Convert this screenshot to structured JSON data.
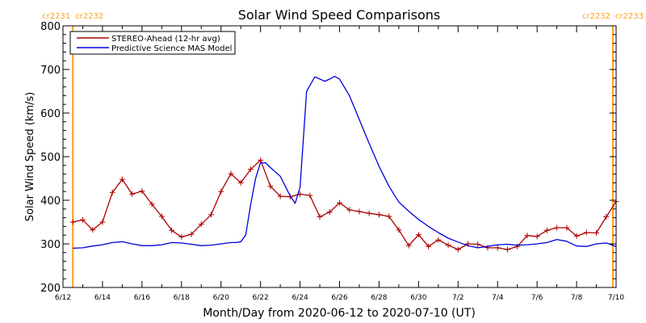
{
  "chart_data": {
    "type": "line",
    "title": "Solar Wind Speed Comparisons",
    "xlabel": "Month/Day from 2020-06-12 to 2020-07-10 (UT)",
    "ylabel": "Solar Wind Speed (km/s)",
    "xlim": [
      "2020-06-12",
      "2020-07-10"
    ],
    "ylim": [
      200,
      800
    ],
    "x_ticks": [
      {
        "date": "2020-06-12",
        "label": "6/12"
      },
      {
        "date": "2020-06-14",
        "label": "6/14"
      },
      {
        "date": "2020-06-16",
        "label": "6/16"
      },
      {
        "date": "2020-06-18",
        "label": "6/18"
      },
      {
        "date": "2020-06-20",
        "label": "6/20"
      },
      {
        "date": "2020-06-22",
        "label": "6/22"
      },
      {
        "date": "2020-06-24",
        "label": "6/24"
      },
      {
        "date": "2020-06-26",
        "label": "6/26"
      },
      {
        "date": "2020-06-28",
        "label": "6/28"
      },
      {
        "date": "2020-06-30",
        "label": "6/30"
      },
      {
        "date": "2020-07-02",
        "label": "7/2"
      },
      {
        "date": "2020-07-04",
        "label": "7/4"
      },
      {
        "date": "2020-07-06",
        "label": "7/6"
      },
      {
        "date": "2020-07-08",
        "label": "7/8"
      },
      {
        "date": "2020-07-10",
        "label": "7/10"
      }
    ],
    "y_ticks": [
      200,
      300,
      400,
      500,
      600,
      700,
      800
    ],
    "legend_position": "top-left",
    "grid": false,
    "markers": [
      {
        "date": "2020-06-12 12:00",
        "left_label": "cr2231",
        "right_label": "cr2232",
        "color": "#ffa020"
      },
      {
        "date": "2020-07-09 20:00",
        "left_label": "cr2232",
        "right_label": "cr2233",
        "color": "#ffa020"
      }
    ],
    "series": [
      {
        "name": "STEREO-Ahead (12-hr avg)",
        "color": "#aa0000",
        "marker": "plus",
        "x": [
          "2020-06-12 12:00",
          "2020-06-13 00:00",
          "2020-06-13 12:00",
          "2020-06-14 00:00",
          "2020-06-14 12:00",
          "2020-06-15 00:00",
          "2020-06-15 12:00",
          "2020-06-16 00:00",
          "2020-06-16 12:00",
          "2020-06-17 00:00",
          "2020-06-17 12:00",
          "2020-06-18 00:00",
          "2020-06-18 12:00",
          "2020-06-19 00:00",
          "2020-06-19 12:00",
          "2020-06-20 00:00",
          "2020-06-20 12:00",
          "2020-06-21 00:00",
          "2020-06-21 12:00",
          "2020-06-22 00:00",
          "2020-06-22 12:00",
          "2020-06-23 00:00",
          "2020-06-23 12:00",
          "2020-06-24 00:00",
          "2020-06-24 12:00",
          "2020-06-25 00:00",
          "2020-06-25 12:00",
          "2020-06-26 00:00",
          "2020-06-26 12:00",
          "2020-06-27 00:00",
          "2020-06-27 12:00",
          "2020-06-28 00:00",
          "2020-06-28 12:00",
          "2020-06-29 00:00",
          "2020-06-29 12:00",
          "2020-06-30 00:00",
          "2020-06-30 12:00",
          "2020-07-01 00:00",
          "2020-07-01 12:00",
          "2020-07-02 00:00",
          "2020-07-02 12:00",
          "2020-07-03 00:00",
          "2020-07-03 12:00",
          "2020-07-04 00:00",
          "2020-07-04 12:00",
          "2020-07-05 00:00",
          "2020-07-05 12:00",
          "2020-07-06 00:00",
          "2020-07-06 12:00",
          "2020-07-07 00:00",
          "2020-07-07 12:00",
          "2020-07-08 00:00",
          "2020-07-08 12:00",
          "2020-07-09 00:00",
          "2020-07-09 12:00",
          "2020-07-10 00:00"
        ],
        "values": [
          350,
          355,
          332,
          350,
          418,
          448,
          414,
          421,
          391,
          363,
          331,
          316,
          322,
          345,
          367,
          420,
          461,
          440,
          471,
          492,
          432,
          409,
          408,
          414,
          411,
          362,
          373,
          394,
          378,
          374,
          370,
          367,
          363,
          332,
          296,
          321,
          294,
          309,
          297,
          287,
          300,
          299,
          291,
          291,
          287,
          294,
          319,
          317,
          331,
          337,
          337,
          318,
          326,
          325,
          362,
          397
        ]
      },
      {
        "name": "Predictive Science MAS Model",
        "color": "#0000dd",
        "marker": "none",
        "x": [
          "2020-06-12 12:00",
          "2020-06-13 00:00",
          "2020-06-13 12:00",
          "2020-06-14 00:00",
          "2020-06-14 12:00",
          "2020-06-15 00:00",
          "2020-06-15 12:00",
          "2020-06-16 00:00",
          "2020-06-16 12:00",
          "2020-06-17 00:00",
          "2020-06-17 12:00",
          "2020-06-18 00:00",
          "2020-06-18 12:00",
          "2020-06-19 00:00",
          "2020-06-19 12:00",
          "2020-06-20 00:00",
          "2020-06-20 12:00",
          "2020-06-20 18:00",
          "2020-06-21 00:00",
          "2020-06-21 06:00",
          "2020-06-21 12:00",
          "2020-06-21 18:00",
          "2020-06-22 00:00",
          "2020-06-22 06:00",
          "2020-06-22 12:00",
          "2020-06-23 00:00",
          "2020-06-23 12:00",
          "2020-06-23 18:00",
          "2020-06-24 00:00",
          "2020-06-24 08:00",
          "2020-06-24 18:00",
          "2020-06-25 06:00",
          "2020-06-25 12:00",
          "2020-06-25 18:00",
          "2020-06-26 00:00",
          "2020-06-26 12:00",
          "2020-06-27 00:00",
          "2020-06-27 12:00",
          "2020-06-28 00:00",
          "2020-06-28 12:00",
          "2020-06-29 00:00",
          "2020-06-29 12:00",
          "2020-06-30 00:00",
          "2020-06-30 12:00",
          "2020-07-01 00:00",
          "2020-07-01 12:00",
          "2020-07-02 00:00",
          "2020-07-02 12:00",
          "2020-07-03 00:00",
          "2020-07-03 12:00",
          "2020-07-04 00:00",
          "2020-07-04 12:00",
          "2020-07-05 00:00",
          "2020-07-05 12:00",
          "2020-07-06 00:00",
          "2020-07-06 12:00",
          "2020-07-07 00:00",
          "2020-07-07 12:00",
          "2020-07-08 00:00",
          "2020-07-08 12:00",
          "2020-07-09 00:00",
          "2020-07-09 12:00",
          "2020-07-10 00:00"
        ],
        "values": [
          290,
          291,
          295,
          298,
          303,
          305,
          300,
          296,
          296,
          298,
          303,
          302,
          299,
          296,
          297,
          300,
          303,
          303,
          305,
          320,
          390,
          450,
          486,
          486,
          475,
          455,
          410,
          393,
          430,
          650,
          683,
          673,
          678,
          684,
          678,
          640,
          585,
          530,
          478,
          432,
          396,
          375,
          356,
          340,
          326,
          313,
          304,
          296,
          291,
          294,
          298,
          299,
          297,
          298,
          300,
          303,
          310,
          306,
          295,
          294,
          300,
          302,
          294
        ]
      }
    ]
  }
}
